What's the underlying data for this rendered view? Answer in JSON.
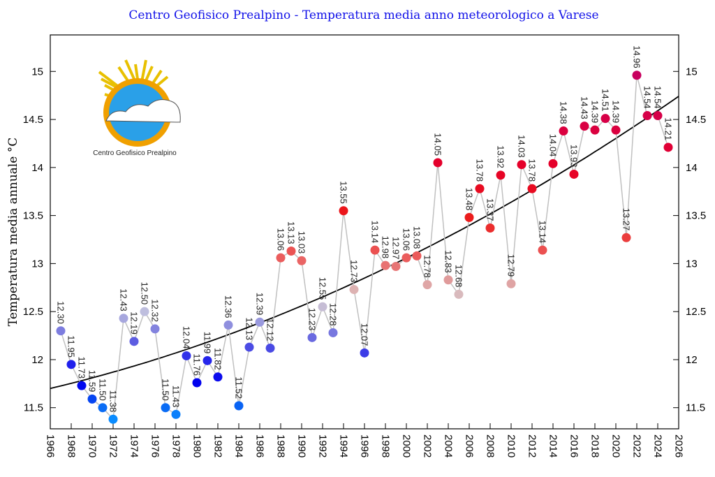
{
  "chart_data": {
    "type": "scatter",
    "title": "Centro Geofisico Prealpino - Temperatura media anno meteorologico a Varese",
    "xlabel": "",
    "ylabel": "Temperatura media annuale °C",
    "xlim": [
      1966,
      2026
    ],
    "ylim": [
      11.28,
      15.38
    ],
    "x_ticks": [
      "1966",
      "1968",
      "1970",
      "1972",
      "1974",
      "1976",
      "1978",
      "1980",
      "1982",
      "1984",
      "1986",
      "1988",
      "1990",
      "1992",
      "1994",
      "1996",
      "1998",
      "2000",
      "2002",
      "2004",
      "2006",
      "2008",
      "2010",
      "2012",
      "2014",
      "2016",
      "2018",
      "2020",
      "2022",
      "2024",
      "2026"
    ],
    "y_ticks": [
      "11.5",
      "12",
      "12.5",
      "13",
      "13.5",
      "14",
      "14.5",
      "15"
    ],
    "x": [
      1967,
      1968,
      1969,
      1970,
      1971,
      1972,
      1973,
      1974,
      1975,
      1976,
      1977,
      1978,
      1979,
      1980,
      1981,
      1982,
      1983,
      1984,
      1985,
      1986,
      1987,
      1988,
      1989,
      1990,
      1991,
      1992,
      1993,
      1994,
      1995,
      1996,
      1997,
      1998,
      1999,
      2000,
      2001,
      2002,
      2003,
      2004,
      2005,
      2006,
      2007,
      2008,
      2009,
      2010,
      2011,
      2012,
      2013,
      2014,
      2015,
      2016,
      2017,
      2018,
      2019,
      2020,
      2021,
      2022,
      2023,
      2024,
      2025
    ],
    "values": [
      12.3,
      11.95,
      11.73,
      11.59,
      11.5,
      11.38,
      12.43,
      12.19,
      12.5,
      12.32,
      11.5,
      11.43,
      12.04,
      11.76,
      11.99,
      11.82,
      12.36,
      11.52,
      12.13,
      12.39,
      12.12,
      13.06,
      13.13,
      13.03,
      12.23,
      12.55,
      12.28,
      13.55,
      12.73,
      12.07,
      13.14,
      12.98,
      12.97,
      13.06,
      13.08,
      12.78,
      14.05,
      12.83,
      12.68,
      13.48,
      13.78,
      13.37,
      13.92,
      12.79,
      14.03,
      13.78,
      13.14,
      14.04,
      14.38,
      13.93,
      14.43,
      14.39,
      14.51,
      14.39,
      13.27,
      14.96,
      14.54,
      14.54,
      14.21
    ],
    "labels": [
      "12.30",
      "11.95",
      "11.73",
      "11.59",
      "11.50",
      "11.38",
      "12.43",
      "12.19",
      "12.50",
      "12.32",
      "11.50",
      "11.43",
      "12.04",
      "11.76",
      "11.99",
      "11.82",
      "12.36",
      "11.52",
      "12.13",
      "12.39",
      "12.12",
      "13.06",
      "13.13",
      "13.03",
      "12.23",
      "12.55",
      "12.28",
      "13.55",
      "12.73",
      "12.07",
      "13.14",
      "12.98",
      "12.97",
      "13.06",
      "13.08",
      "12.78",
      "14.05",
      "12.83",
      "12.68",
      "13.48",
      "13.78",
      "13.37",
      "13.92",
      "12.79",
      "14.03",
      "13.78",
      "13.14",
      "14.04",
      "14.38",
      "13.93",
      "14.43",
      "14.39",
      "14.51",
      "14.39",
      "13.27",
      "14.96",
      "14.54",
      "14.54",
      "14.21"
    ],
    "trend": {
      "type": "polynomial",
      "start": [
        1966,
        11.7
      ],
      "end": [
        2026,
        14.74
      ]
    },
    "grid": false,
    "logo_text": "Centro Geofisico Prealpino"
  }
}
